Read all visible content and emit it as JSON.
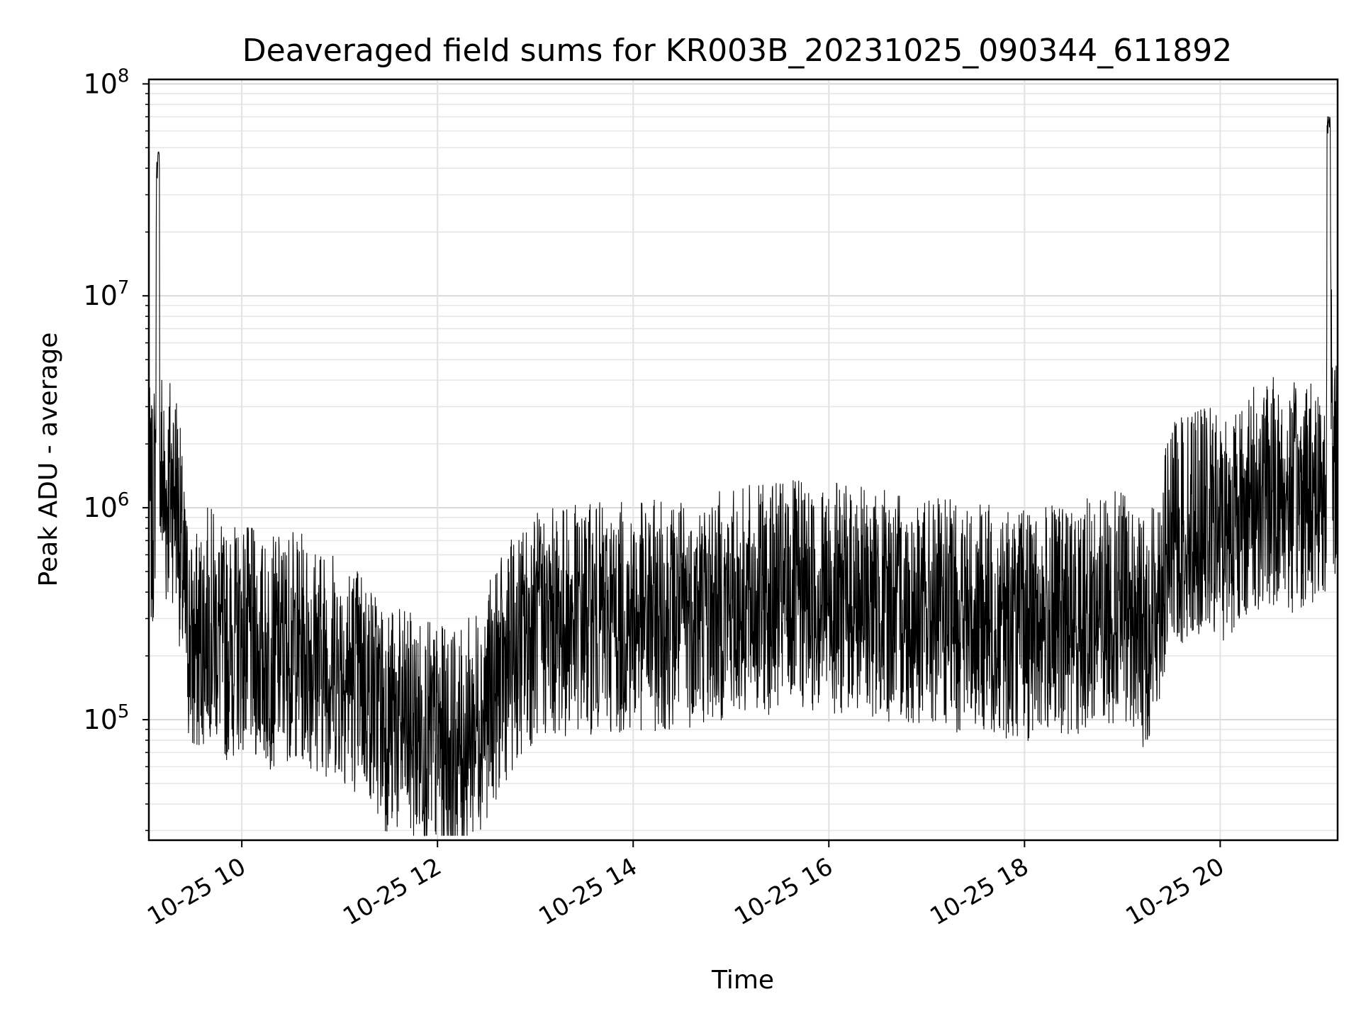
{
  "chart_data": {
    "type": "line",
    "title": "Deaveraged field sums for KR003B_20231025_090344_611892",
    "xlabel": "Time",
    "ylabel": "Peak ADU - average",
    "xscale": "time",
    "yscale": "log",
    "xlim": [
      "2023-10-25 09:03",
      "2023-10-25 21:12"
    ],
    "ylim": [
      27000,
      105000000
    ],
    "grid": true,
    "line_color": "#000000",
    "x_ticks": [
      {
        "value": "2023-10-25 10:00",
        "label": "10-25 10"
      },
      {
        "value": "2023-10-25 12:00",
        "label": "10-25 12"
      },
      {
        "value": "2023-10-25 14:00",
        "label": "10-25 14"
      },
      {
        "value": "2023-10-25 16:00",
        "label": "10-25 16"
      },
      {
        "value": "2023-10-25 18:00",
        "label": "10-25 18"
      },
      {
        "value": "2023-10-25 20:00",
        "label": "10-25 20"
      }
    ],
    "y_ticks": [
      {
        "value": 100000,
        "base": "10",
        "exp": "5"
      },
      {
        "value": 1000000,
        "base": "10",
        "exp": "6"
      },
      {
        "value": 10000000,
        "base": "10",
        "exp": "7"
      },
      {
        "value": 100000000,
        "base": "10",
        "exp": "8"
      }
    ],
    "series": [
      {
        "x": [
          "2023-10-25 09:03",
          "2023-10-25 09:05",
          "2023-10-25 09:07",
          "2023-10-25 09:08",
          "2023-10-25 09:09",
          "2023-10-25 09:10",
          "2023-10-25 09:11",
          "2023-10-25 09:13",
          "2023-10-25 09:16",
          "2023-10-25 09:20",
          "2023-10-25 09:25",
          "2023-10-25 09:30",
          "2023-10-25 09:35",
          "2023-10-25 09:40",
          "2023-10-25 09:50",
          "2023-10-25 10:00",
          "2023-10-25 10:15",
          "2023-10-25 10:30",
          "2023-10-25 10:45",
          "2023-10-25 11:00",
          "2023-10-25 11:15",
          "2023-10-25 11:30",
          "2023-10-25 11:45",
          "2023-10-25 12:00",
          "2023-10-25 12:15",
          "2023-10-25 12:30",
          "2023-10-25 12:45",
          "2023-10-25 13:00",
          "2023-10-25 13:30",
          "2023-10-25 14:00",
          "2023-10-25 14:30",
          "2023-10-25 15:00",
          "2023-10-25 15:30",
          "2023-10-25 16:00",
          "2023-10-25 16:30",
          "2023-10-25 17:00",
          "2023-10-25 17:30",
          "2023-10-25 18:00",
          "2023-10-25 18:30",
          "2023-10-25 19:00",
          "2023-10-25 19:15",
          "2023-10-25 19:30",
          "2023-10-25 19:45",
          "2023-10-25 20:00",
          "2023-10-25 20:15",
          "2023-10-25 20:30",
          "2023-10-25 20:45",
          "2023-10-25 21:00",
          "2023-10-25 21:05",
          "2023-10-25 21:06",
          "2023-10-25 21:07",
          "2023-10-25 21:09",
          "2023-10-25 21:11",
          "2023-10-25 21:12"
        ],
        "y": [
          1200000,
          800000,
          1500000,
          40000000,
          44000000,
          1100000,
          1600000,
          1000000,
          1300000,
          1200000,
          350000,
          200000,
          250000,
          300000,
          220000,
          250000,
          200000,
          230000,
          200000,
          180000,
          150000,
          100000,
          90000,
          80000,
          75000,
          120000,
          200000,
          280000,
          300000,
          300000,
          320000,
          350000,
          380000,
          380000,
          350000,
          320000,
          300000,
          280000,
          300000,
          350000,
          250000,
          700000,
          900000,
          800000,
          1000000,
          1200000,
          1100000,
          1300000,
          1000000,
          65000000,
          70000000,
          800000,
          2000000,
          1500000
        ]
      }
    ]
  }
}
